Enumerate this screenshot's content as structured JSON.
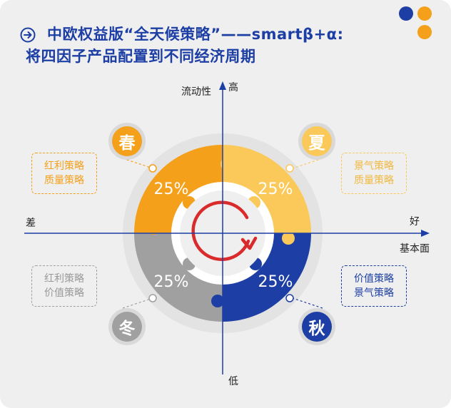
{
  "title": {
    "line1": "中欧权益版“全天候策略”——smartβ+α:",
    "line2": "将四因子产品配置到不同经济周期"
  },
  "axes": {
    "y_top_label": "流动性",
    "y_high": "高",
    "y_low": "低",
    "x_left": "差",
    "x_right_top": "好",
    "x_right_bottom": "基本面"
  },
  "quadrants": [
    {
      "season": "春",
      "percent": "25%",
      "strategies": [
        "红利策略",
        "质量策略"
      ]
    },
    {
      "season": "夏",
      "percent": "25%",
      "strategies": [
        "景气策略",
        "质量策略"
      ]
    },
    {
      "season": "冬",
      "percent": "25%",
      "strategies": [
        "红利策略",
        "价值策略"
      ]
    },
    {
      "season": "秋",
      "percent": "25%",
      "strategies": [
        "价值策略",
        "景气策略"
      ]
    }
  ],
  "colors": {
    "spring": "#f5a01a",
    "summer": "#fbc95a",
    "winter": "#a0a0a0",
    "autumn": "#1d3fa5",
    "title": "#1d3fa5",
    "arrow": "#d92b2b"
  }
}
